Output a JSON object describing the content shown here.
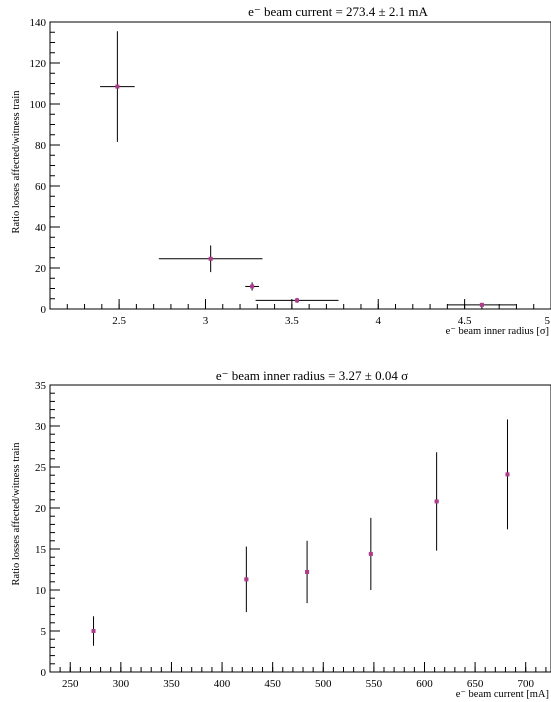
{
  "chart_data": [
    {
      "type": "scatter",
      "title": "e⁻ beam current = 273.4 ± 2.1 mA",
      "xlabel": "e⁻ beam inner radius [σ]",
      "ylabel": "Ratio losses affected/witness train",
      "xlim": [
        2.1,
        5.0
      ],
      "ylim": [
        0,
        140
      ],
      "xticks": [
        "2.5",
        "3",
        "3.5",
        "4",
        "4.5",
        "5"
      ],
      "xtick_values": [
        2.5,
        3,
        3.5,
        4,
        4.5,
        5
      ],
      "yticks": [
        "0",
        "20",
        "40",
        "60",
        "80",
        "100",
        "120",
        "140"
      ],
      "ytick_values": [
        0,
        20,
        40,
        60,
        80,
        100,
        120,
        140
      ],
      "marker_color": "#b03a8c",
      "points": [
        {
          "x": 2.49,
          "y": 108.5,
          "xerr": 0.1,
          "yerr": 27
        },
        {
          "x": 3.03,
          "y": 24.5,
          "xerr": 0.3,
          "yerr": 6.5
        },
        {
          "x": 3.27,
          "y": 11.0,
          "xerr": 0.04,
          "yerr": 2.0
        },
        {
          "x": 3.53,
          "y": 4.2,
          "xerr": 0.24,
          "yerr": 1.2
        },
        {
          "x": 4.6,
          "y": 2.0,
          "xerr": 0.2,
          "yerr": 1.0
        }
      ]
    },
    {
      "type": "scatter",
      "title": "e⁻ beam inner radius = 3.27 ± 0.04 σ",
      "xlabel": "e⁻ beam current [mA]",
      "ylabel": "Ratio losses affected/witness train",
      "xlim": [
        230,
        725
      ],
      "ylim": [
        0,
        35
      ],
      "xticks": [
        "250",
        "300",
        "350",
        "400",
        "450",
        "500",
        "550",
        "600",
        "650",
        "700"
      ],
      "xtick_values": [
        250,
        300,
        350,
        400,
        450,
        500,
        550,
        600,
        650,
        700
      ],
      "yticks": [
        "0",
        "5",
        "10",
        "15",
        "20",
        "25",
        "30",
        "35"
      ],
      "ytick_values": [
        0,
        5,
        10,
        15,
        20,
        25,
        30,
        35
      ],
      "marker_color": "#b03a8c",
      "points": [
        {
          "x": 273,
          "y": 5.0,
          "xerr": 2,
          "yerr": 1.8
        },
        {
          "x": 424,
          "y": 11.3,
          "xerr": 2,
          "yerr": 4.0
        },
        {
          "x": 484,
          "y": 12.2,
          "xerr": 2,
          "yerr": 3.8
        },
        {
          "x": 547,
          "y": 14.4,
          "xerr": 2,
          "yerr": 4.4
        },
        {
          "x": 612,
          "y": 20.8,
          "xerr": 2,
          "yerr": 6.0
        },
        {
          "x": 682,
          "y": 24.1,
          "xerr": 2,
          "yerr": 6.7
        }
      ]
    }
  ]
}
